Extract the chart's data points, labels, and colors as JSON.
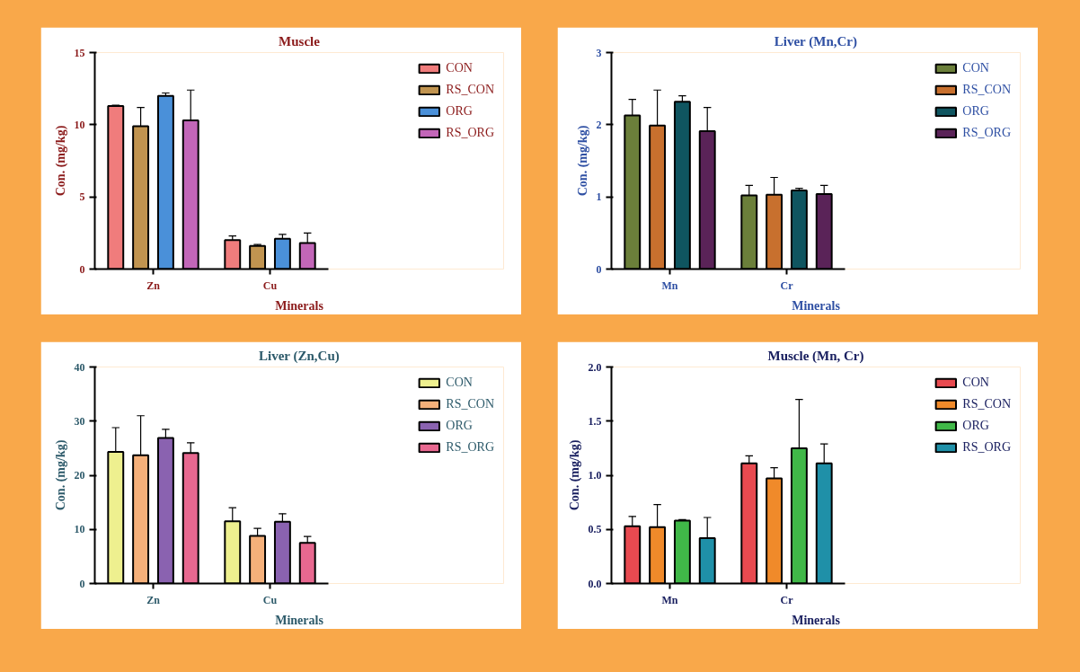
{
  "chart_data": [
    {
      "type": "bar",
      "title": "Muscle",
      "xlabel": "Minerals",
      "ylabel": "Con. (mg/kg)",
      "categories": [
        "Zn",
        "Cu"
      ],
      "ylim": [
        0,
        15
      ],
      "yticks": [
        0,
        5,
        10,
        15
      ],
      "legend": "right",
      "grid": false,
      "series": [
        {
          "name": "CON",
          "color": "#f07c7c",
          "values": [
            11.3,
            2.0
          ],
          "errors": [
            [
              11.3,
              11.35
            ],
            [
              2.0,
              2.3
            ]
          ]
        },
        {
          "name": "RS_CON",
          "color": "#c19450",
          "values": [
            9.9,
            1.6
          ],
          "errors": [
            [
              9.9,
              11.2
            ],
            [
              1.6,
              1.7
            ]
          ]
        },
        {
          "name": "ORG",
          "color": "#4a90d9",
          "values": [
            12.0,
            2.1
          ],
          "errors": [
            [
              12.0,
              12.2
            ],
            [
              2.1,
              2.4
            ]
          ]
        },
        {
          "name": "RS_ORG",
          "color": "#c266b8",
          "values": [
            10.3,
            1.8
          ],
          "errors": [
            [
              10.3,
              12.4
            ],
            [
              1.8,
              2.5
            ]
          ]
        }
      ]
    },
    {
      "type": "bar",
      "title": "Liver (Mn,Cr)",
      "xlabel": "Minerals",
      "ylabel": "Con. (mg/kg)",
      "categories": [
        "Mn",
        "Cr"
      ],
      "ylim": [
        0,
        3
      ],
      "yticks": [
        0,
        1,
        2,
        3
      ],
      "legend": "right",
      "grid": false,
      "series": [
        {
          "name": "CON",
          "color": "#6b7f3a",
          "values": [
            2.13,
            1.02
          ],
          "errors": [
            [
              2.13,
              2.35
            ],
            [
              1.02,
              1.16
            ]
          ]
        },
        {
          "name": "RS_CON",
          "color": "#c8702e",
          "values": [
            1.99,
            1.03
          ],
          "errors": [
            [
              1.99,
              2.48
            ],
            [
              1.03,
              1.27
            ]
          ]
        },
        {
          "name": "ORG",
          "color": "#0f5560",
          "values": [
            2.32,
            1.09
          ],
          "errors": [
            [
              2.32,
              2.4
            ],
            [
              1.09,
              1.12
            ]
          ]
        },
        {
          "name": "RS_ORG",
          "color": "#5a2358",
          "values": [
            1.91,
            1.04
          ],
          "errors": [
            [
              1.91,
              2.24
            ],
            [
              1.04,
              1.16
            ]
          ]
        }
      ]
    },
    {
      "type": "bar",
      "title": "Liver (Zn,Cu)",
      "xlabel": "Minerals",
      "ylabel": "Con. (mg/kg)",
      "categories": [
        "Zn",
        "Cu"
      ],
      "ylim": [
        0,
        40
      ],
      "yticks": [
        0,
        10,
        20,
        30,
        40
      ],
      "legend": "right",
      "grid": false,
      "series": [
        {
          "name": "CON",
          "color": "#eef08f",
          "values": [
            24.3,
            11.5
          ],
          "errors": [
            [
              24.3,
              28.8
            ],
            [
              11.5,
              14.0
            ]
          ]
        },
        {
          "name": "RS_CON",
          "color": "#f5b07a",
          "values": [
            23.7,
            8.8
          ],
          "errors": [
            [
              23.7,
              31.0
            ],
            [
              8.8,
              10.2
            ]
          ]
        },
        {
          "name": "ORG",
          "color": "#8a62b0",
          "values": [
            26.9,
            11.4
          ],
          "errors": [
            [
              26.9,
              28.5
            ],
            [
              11.4,
              12.9
            ]
          ]
        },
        {
          "name": "RS_ORG",
          "color": "#e86890",
          "values": [
            24.1,
            7.5
          ],
          "errors": [
            [
              24.1,
              26.0
            ],
            [
              7.5,
              8.7
            ]
          ]
        }
      ]
    },
    {
      "type": "bar",
      "title": "Muscle (Mn, Cr)",
      "xlabel": "Minerals",
      "ylabel": "Con. (mg/kg)",
      "categories": [
        "Mn",
        "Cr"
      ],
      "ylim": [
        0,
        2
      ],
      "yticks": [
        {
          "value": 0,
          "label": "0.0"
        },
        {
          "value": 0.5,
          "label": "0.5"
        },
        {
          "value": 1,
          "label": "1.0"
        },
        {
          "value": 1.5,
          "label": "1.5"
        },
        {
          "value": 2,
          "label": "2.0"
        }
      ],
      "legend": "right",
      "grid": false,
      "series": [
        {
          "name": "CON",
          "color": "#e84a50",
          "values": [
            0.53,
            1.11
          ],
          "errors": [
            [
              0.53,
              0.62
            ],
            [
              1.11,
              1.18
            ]
          ]
        },
        {
          "name": "RS_CON",
          "color": "#f08a2a",
          "values": [
            0.52,
            0.97
          ],
          "errors": [
            [
              0.52,
              0.73
            ],
            [
              0.97,
              1.07
            ]
          ]
        },
        {
          "name": "ORG",
          "color": "#40b848",
          "values": [
            0.58,
            1.25
          ],
          "errors": [
            [
              0.58,
              0.59
            ],
            [
              1.25,
              1.7
            ]
          ]
        },
        {
          "name": "RS_ORG",
          "color": "#1f90a8",
          "values": [
            0.42,
            1.11
          ],
          "errors": [
            [
              0.42,
              0.61
            ],
            [
              1.11,
              1.29
            ]
          ]
        }
      ]
    }
  ]
}
